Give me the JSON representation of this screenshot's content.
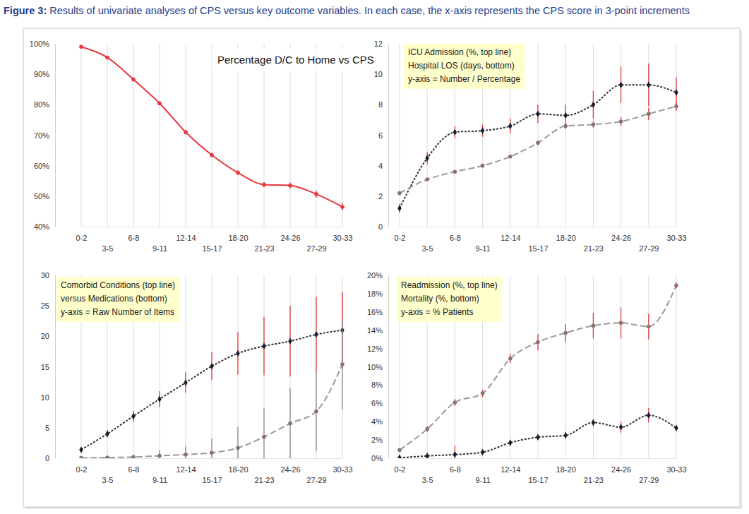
{
  "caption": {
    "label": "Figure 3:",
    "text": "Results of univariate analyses of CPS versus key outcome variables. In each case, the x-axis represents the CPS score in 3-point increments"
  },
  "chart_data": [
    {
      "type": "line",
      "title": "Percentage D/C to Home vs CPS",
      "categories": [
        "0-2",
        "3-5",
        "6-8",
        "9-11",
        "12-14",
        "15-17",
        "18-20",
        "21-23",
        "24-26",
        "27-29",
        "30-33"
      ],
      "ylim": [
        40,
        100
      ],
      "yticks": [
        {
          "value": 40,
          "label": "40%"
        },
        {
          "value": 50,
          "label": "50%"
        },
        {
          "value": 60,
          "label": "60%"
        },
        {
          "value": 70,
          "label": "70%"
        },
        {
          "value": 80,
          "label": "80%"
        },
        {
          "value": 90,
          "label": "90%"
        },
        {
          "value": 100,
          "label": "100%"
        }
      ],
      "grid": "x",
      "series": [
        {
          "color": "#e8373f",
          "marker": "circle",
          "line_style": "solid",
          "values": [
            99,
            95.5,
            88.3,
            80.5,
            71,
            63.5,
            57.7,
            53.8,
            53.5,
            50.7,
            46.5
          ],
          "errors": [
            0.5,
            0.5,
            0.7,
            0.6,
            0.8,
            0.7,
            0.8,
            0.9,
            1.0,
            1.2,
            1.2
          ]
        }
      ]
    },
    {
      "type": "line",
      "annotations": [
        "ICU Admission (%, top line)",
        "Hospital LOS (days, bottom)",
        "y-axis = Number / Percentage"
      ],
      "categories": [
        "0-2",
        "3-5",
        "6-8",
        "9-11",
        "12-14",
        "15-17",
        "18-20",
        "21-23",
        "24-26",
        "27-29",
        "30-33"
      ],
      "ylim": [
        0,
        12
      ],
      "yticks": [
        0,
        2,
        4,
        6,
        8,
        10,
        12
      ],
      "grid": "x",
      "series": [
        {
          "color": "#333333",
          "marker": "diamond",
          "line_style": "dotted",
          "values": [
            1.2,
            4.5,
            6.2,
            6.3,
            6.6,
            7.4,
            7.3,
            8.0,
            9.3,
            9.3,
            8.8
          ],
          "errors": [
            0.3,
            0.4,
            0.4,
            0.4,
            0.5,
            0.6,
            0.7,
            0.9,
            1.2,
            1.4,
            1.0
          ]
        },
        {
          "color": "#9a9a9a",
          "marker": "circle",
          "line_style": "dashed",
          "values": [
            2.2,
            3.1,
            3.6,
            4.0,
            4.6,
            5.5,
            6.6,
            6.7,
            6.9,
            7.4,
            7.9
          ],
          "errors": [
            0.1,
            0.1,
            0.1,
            0.1,
            0.1,
            0.15,
            0.2,
            0.2,
            0.3,
            0.4,
            0.3
          ]
        }
      ]
    },
    {
      "type": "line",
      "annotations": [
        "Comorbid Conditions (top line)",
        "versus Medications (bottom)",
        "y-axis = Raw Number of Items"
      ],
      "categories": [
        "0-2",
        "3-5",
        "6-8",
        "9-11",
        "12-14",
        "15-17",
        "18-20",
        "21-23",
        "24-26",
        "27-29",
        "30-33"
      ],
      "ylim": [
        0,
        30
      ],
      "yticks": [
        0,
        5,
        10,
        15,
        20,
        25,
        30
      ],
      "grid": "x",
      "series": [
        {
          "color": "#333333",
          "marker": "diamond",
          "line_style": "dotted",
          "values": [
            1.4,
            4.0,
            6.9,
            9.7,
            12.4,
            15.1,
            17.2,
            18.4,
            19.2,
            20.3,
            21.0
          ],
          "errors": [
            0.3,
            0.6,
            0.9,
            1.3,
            1.7,
            2.3,
            3.5,
            4.8,
            5.8,
            6.2,
            6.3
          ]
        },
        {
          "color": "#9a9a9a",
          "marker": "circle",
          "line_style": "dashed",
          "values": [
            0.05,
            0.1,
            0.2,
            0.4,
            0.6,
            0.9,
            1.7,
            3.5,
            5.7,
            7.7,
            15.4
          ],
          "errors": [
            0.05,
            0.1,
            0.4,
            0.9,
            1.4,
            2.3,
            3.4,
            4.7,
            5.8,
            6.5,
            7.4
          ]
        }
      ]
    },
    {
      "type": "line",
      "annotations": [
        "Readmission (%, top line)",
        "Mortality (%, bottom)",
        "y-axis = % Patients"
      ],
      "categories": [
        "0-2",
        "3-5",
        "6-8",
        "9-11",
        "12-14",
        "15-17",
        "18-20",
        "21-23",
        "24-26",
        "27-29",
        "30-33"
      ],
      "ylim": [
        0,
        20
      ],
      "yticks": [
        {
          "value": 0,
          "label": "0%"
        },
        {
          "value": 2,
          "label": "2%"
        },
        {
          "value": 4,
          "label": "4%"
        },
        {
          "value": 6,
          "label": "6%"
        },
        {
          "value": 8,
          "label": "8%"
        },
        {
          "value": 10,
          "label": "10%"
        },
        {
          "value": 12,
          "label": "12%"
        },
        {
          "value": 14,
          "label": "14%"
        },
        {
          "value": 16,
          "label": "16%"
        },
        {
          "value": 18,
          "label": "18%"
        },
        {
          "value": 20,
          "label": "20%"
        }
      ],
      "grid": "x",
      "series": [
        {
          "color": "#9a9a9a",
          "marker": "circle",
          "line_style": "dashed",
          "values": [
            0.9,
            3.2,
            6.1,
            7.1,
            10.9,
            12.7,
            13.7,
            14.5,
            14.8,
            14.4,
            18.9
          ],
          "errors": [
            0.2,
            0.3,
            0.4,
            0.4,
            0.5,
            0.9,
            1.0,
            1.4,
            1.7,
            1.4,
            0.3
          ]
        },
        {
          "color": "#333333",
          "marker": "diamond",
          "line_style": "dotted",
          "values": [
            0.05,
            0.25,
            0.4,
            0.65,
            1.7,
            2.3,
            2.5,
            3.9,
            3.4,
            4.7,
            3.3
          ],
          "errors": [
            0.05,
            0.1,
            1.0,
            0.1,
            0.2,
            0.3,
            0.4,
            0.4,
            0.6,
            0.8,
            0.2
          ]
        }
      ]
    }
  ]
}
